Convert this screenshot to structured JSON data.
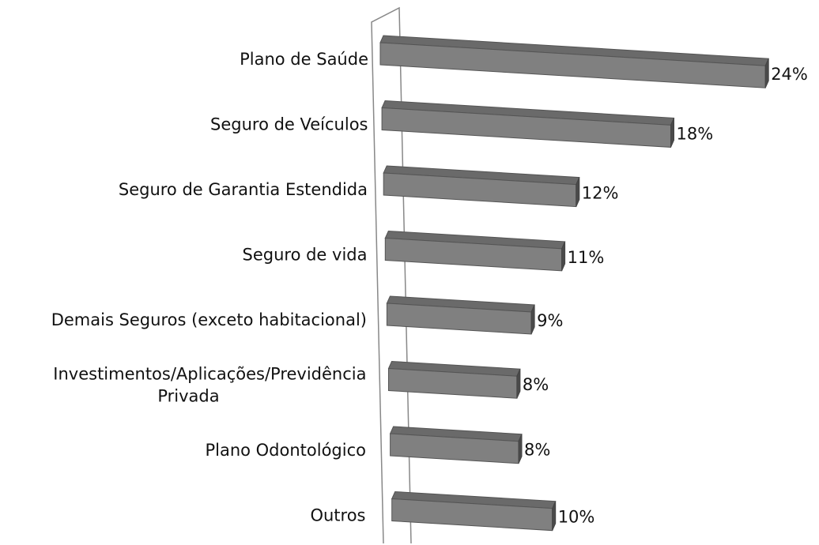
{
  "chart_data": {
    "type": "bar",
    "orientation": "horizontal",
    "categories": [
      "Plano de Saúde",
      "Seguro de Veículos",
      "Seguro de Garantia Estendida",
      "Seguro de vida",
      "Demais Seguros (exceto habitacional)",
      "Investimentos/Aplicações/Previdência Privada",
      "Plano Odontológico",
      "Outros"
    ],
    "values": [
      24,
      18,
      12,
      11,
      9,
      8,
      8,
      10
    ],
    "value_labels": [
      "24%",
      "18%",
      "12%",
      "11%",
      "9%",
      "8%",
      "8%",
      "10%"
    ],
    "color": "#808080"
  }
}
